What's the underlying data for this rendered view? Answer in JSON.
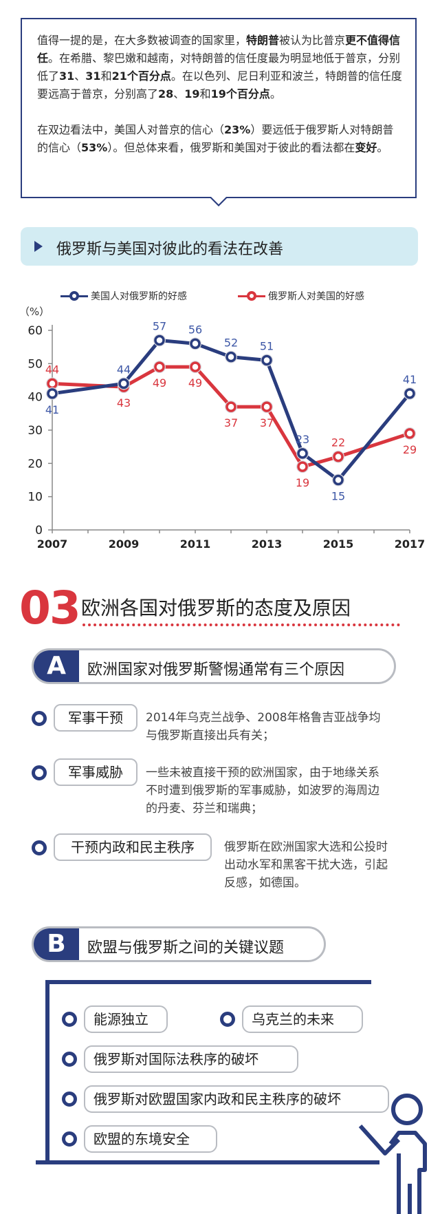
{
  "intro": {
    "p1": [
      {
        "t": "值得一提的是，在大多数被调查的国家里，"
      },
      {
        "t": "特朗普",
        "b": true
      },
      {
        "t": "被认为比普京"
      },
      {
        "t": "更不值得信任",
        "b": true
      },
      {
        "t": "。在希腊、黎巴嫩和越南，对特朗普的信任度最为明显地低于普京，分别低了"
      },
      {
        "t": "31",
        "b": true
      },
      {
        "t": "、"
      },
      {
        "t": "31",
        "b": true
      },
      {
        "t": "和"
      },
      {
        "t": "21个百分点",
        "b": true
      },
      {
        "t": "。在以色列、尼日利亚和波兰，特朗普的信任度要远高于普京，分别高了"
      },
      {
        "t": "28",
        "b": true
      },
      {
        "t": "、"
      },
      {
        "t": "19",
        "b": true
      },
      {
        "t": "和"
      },
      {
        "t": "19个百分点",
        "b": true
      },
      {
        "t": "。"
      }
    ],
    "p2": [
      {
        "t": "在双边看法中，美国人对普京的信心（"
      },
      {
        "t": "23%",
        "b": true
      },
      {
        "t": "）要远低于俄罗斯人对特朗普的信心（"
      },
      {
        "t": "53%",
        "b": true
      },
      {
        "t": "）。但总体来看，俄罗斯和美国对于彼此的看法都在"
      },
      {
        "t": "变好",
        "b": true
      },
      {
        "t": "。"
      }
    ]
  },
  "chart_banner": "俄罗斯与美国对彼此的看法在改善",
  "chart_data": {
    "type": "line",
    "x": [
      2007,
      2009,
      2010,
      2011,
      2012,
      2013,
      2014,
      2015,
      2017
    ],
    "x_ticks": [
      "2007",
      "2009",
      "2011",
      "2013",
      "2015",
      "2017"
    ],
    "xlim": [
      2007,
      2017
    ],
    "ylim": [
      0,
      60
    ],
    "y_ticks": [
      0,
      10,
      20,
      30,
      40,
      50,
      60
    ],
    "ylabel": "（%）",
    "grid": false,
    "legend_position": "top",
    "series": [
      {
        "name": "美国人对俄罗斯的好感",
        "color": "#2a3d7e",
        "label_color": "#3d57a6",
        "values": [
          41,
          44,
          57,
          56,
          52,
          51,
          23,
          15,
          41
        ],
        "label_pos": [
          "below",
          "above",
          "above",
          "above",
          "above",
          "above",
          "above",
          "below",
          "above"
        ]
      },
      {
        "name": "俄罗斯人对美国的好感",
        "color": "#d9363e",
        "label_color": "#d9363e",
        "values": [
          44,
          43,
          49,
          49,
          37,
          37,
          19,
          22,
          29
        ],
        "label_pos": [
          "above",
          "below",
          "below",
          "below",
          "below",
          "below",
          "below",
          "above",
          "below"
        ]
      }
    ]
  },
  "section": {
    "number": "03",
    "title": "欧洲各国对俄罗斯的态度及原因"
  },
  "block_a": {
    "letter": "A",
    "title": "欧洲国家对俄罗斯警惕通常有三个原因",
    "items": [
      {
        "tag": "军事干预",
        "lines": [
          "2014年乌克兰战争、2008年格鲁吉亚战争均",
          "与俄罗斯直接出兵有关；"
        ]
      },
      {
        "tag": "军事威胁",
        "lines": [
          "一些未被直接干预的欧洲国家，由于地缘关系",
          "不时遭到俄罗斯的军事威胁，如波罗的海周边",
          "的丹麦、芬兰和瑞典；"
        ]
      },
      {
        "tag": "干预内政和民主秩序",
        "lines": [
          "俄罗斯在欧洲国家大选和公投时",
          "出动水军和黑客干扰大选，引起",
          "反感，如德国。"
        ]
      }
    ]
  },
  "block_b": {
    "letter": "B",
    "title": "欧盟与俄罗斯之间的关键议题",
    "items": [
      "能源独立",
      "乌克兰的未来",
      "俄罗斯对国际法秩序的破坏",
      "俄罗斯对欧盟国家内政和民主秩序的破坏",
      "欧盟的东境安全"
    ]
  },
  "colors": {
    "navy": "#2a3d7e",
    "red": "#d9363e",
    "banner_bg": "#d3ecf3",
    "pill_border": "#b9bcc2"
  }
}
